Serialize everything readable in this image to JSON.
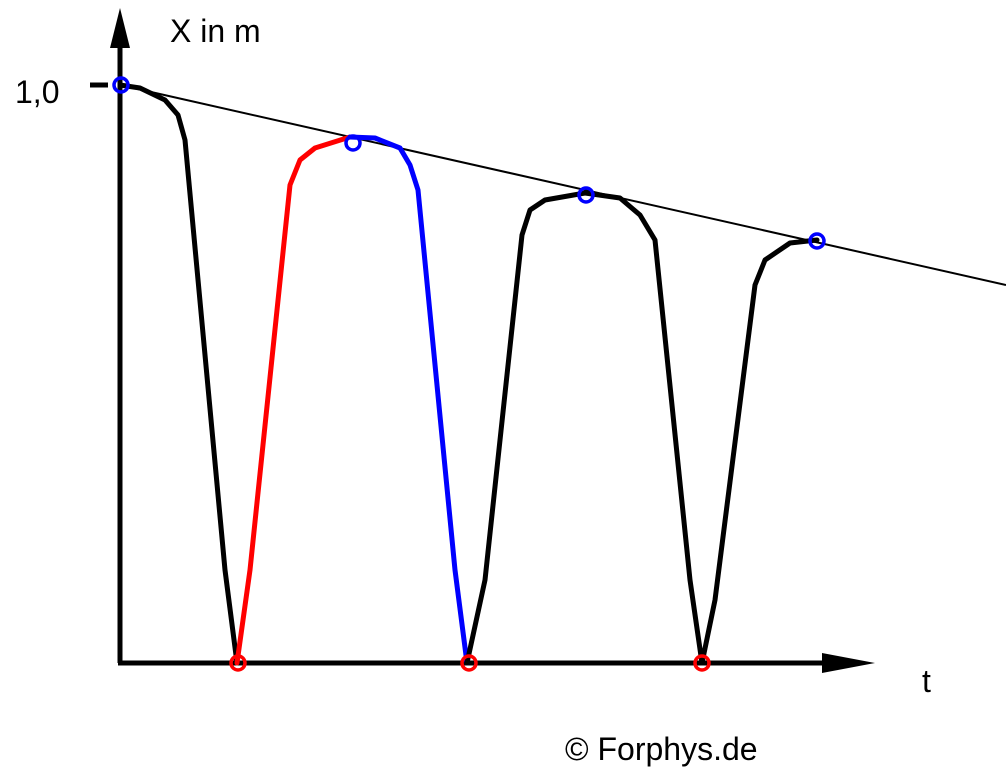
{
  "axes": {
    "y_label": "X in m",
    "x_label": "t",
    "y_tick": "1,0"
  },
  "footer": {
    "copyright": "© Forphys.de"
  }
}
